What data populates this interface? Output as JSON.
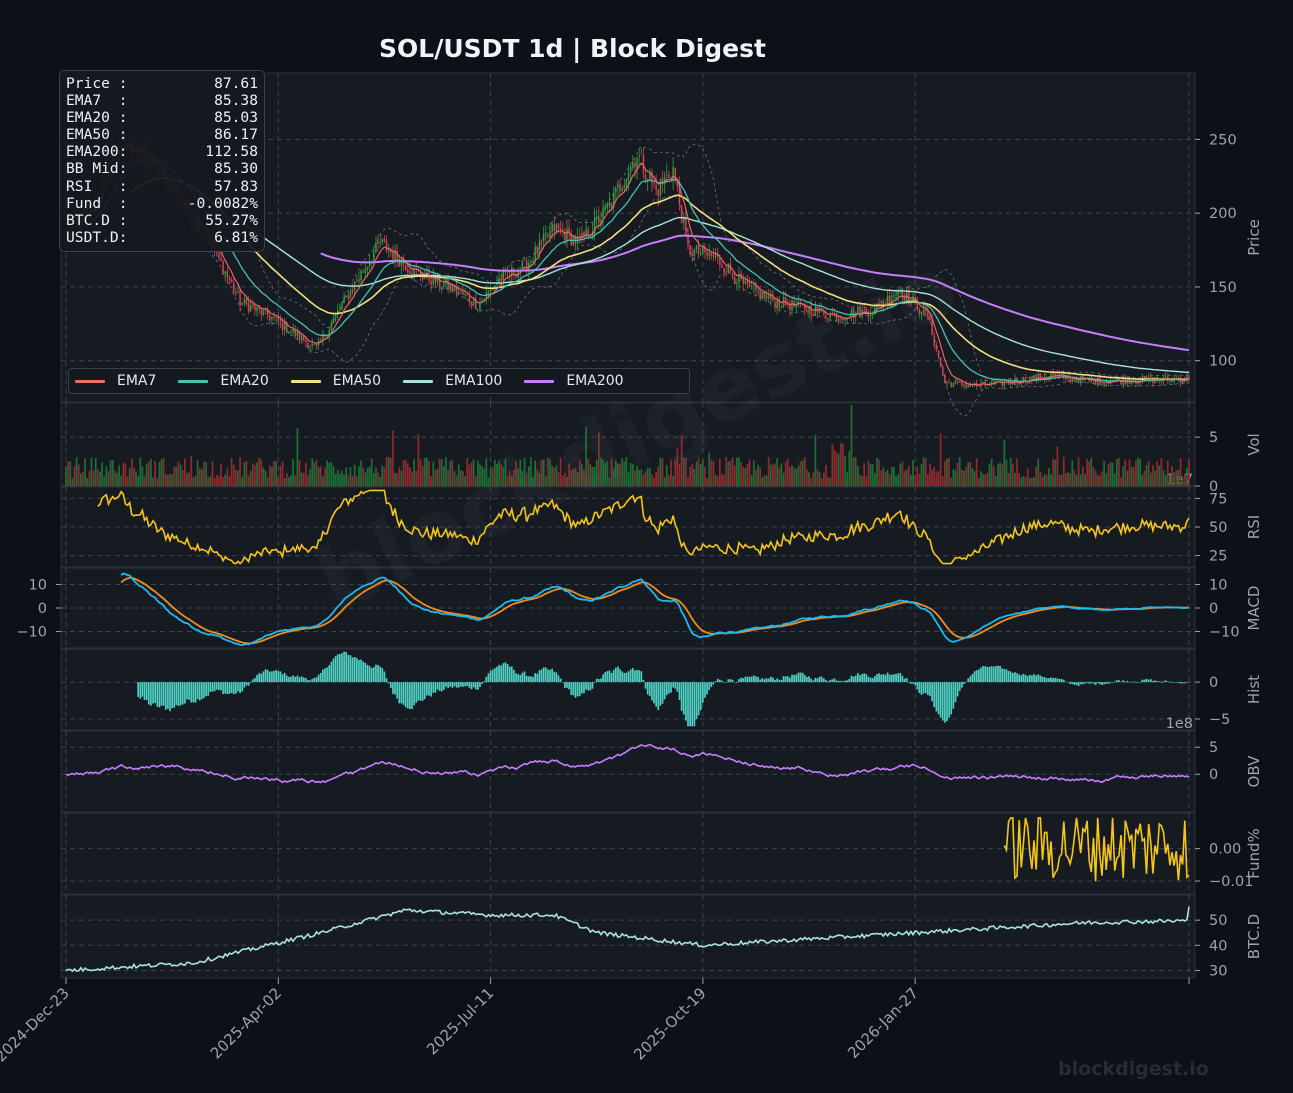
{
  "title": "SOL/USDT  1d  |  Block Digest",
  "info_box": [
    {
      "label": "Price :",
      "value": "87.61"
    },
    {
      "label": "EMA7  :",
      "value": "85.38"
    },
    {
      "label": "EMA20 :",
      "value": "85.03"
    },
    {
      "label": "EMA50 :",
      "value": "86.17"
    },
    {
      "label": "EMA200:",
      "value": "112.58"
    },
    {
      "label": "BB Mid:",
      "value": "85.30"
    },
    {
      "label": "RSI   :",
      "value": "57.83"
    },
    {
      "label": "Fund  :",
      "value": "-0.0082%"
    },
    {
      "label": "BTC.D :",
      "value": "55.27%"
    },
    {
      "label": "USDT.D:",
      "value": "6.81%"
    }
  ],
  "legend": [
    {
      "label": "EMA7",
      "color": "#f06a6a"
    },
    {
      "label": "EMA20",
      "color": "#45c1b4"
    },
    {
      "label": "EMA50",
      "color": "#f3df7c"
    },
    {
      "label": "EMA100",
      "color": "#a9e3d9"
    },
    {
      "label": "EMA200",
      "color": "#c77dff"
    }
  ],
  "watermark": "blockdigest.io",
  "watermark_diagonal": "blockdigest.io",
  "colors": {
    "background": "#0d1017",
    "panel": "#161b22",
    "grid": "#3b4250",
    "up": "#2ea043",
    "down": "#d9434e",
    "rsi": "#f5c518",
    "macd": "#1fb8f0",
    "signal": "#f08c1c",
    "hist": "#4fd1c5",
    "obv": "#c77dff",
    "funding": "#f5c518",
    "btcd": "#a9e3d9"
  },
  "chart_data": {
    "type": "line",
    "x_ticks": [
      "2024-Dec-23",
      "2025-Apr-02",
      "2025-Jul-11",
      "2025-Oct-19",
      "2026-Jan-27"
    ],
    "panels": [
      {
        "id": "price",
        "ylabel": "Price",
        "yticks": [
          100,
          150,
          200,
          250
        ],
        "ylim": [
          72,
          295
        ],
        "type": "candlestick",
        "anchors": {
          "dates": [
            "2024-12-23",
            "2025-01-05",
            "2025-01-18",
            "2025-02-01",
            "2025-02-15",
            "2025-03-01",
            "2025-03-15",
            "2025-03-29",
            "2025-04-08",
            "2025-04-20",
            "2025-05-05",
            "2025-05-20",
            "2025-06-05",
            "2025-06-22",
            "2025-07-05",
            "2025-07-15",
            "2025-07-28",
            "2025-08-10",
            "2025-08-22",
            "2025-09-05",
            "2025-09-18",
            "2025-09-27",
            "2025-10-05",
            "2025-10-12",
            "2025-10-25",
            "2025-11-08",
            "2025-11-22",
            "2025-12-08",
            "2025-12-22",
            "2026-01-08",
            "2026-01-20",
            "2026-02-02",
            "2026-02-10",
            "2026-02-25",
            "2026-03-15",
            "2026-04-01",
            "2026-04-20",
            "2026-05-15",
            "2026-06-05"
          ],
          "close": [
            185,
            205,
            250,
            235,
            210,
            180,
            140,
            130,
            120,
            108,
            145,
            180,
            160,
            150,
            138,
            155,
            165,
            190,
            180,
            205,
            240,
            215,
            230,
            175,
            170,
            150,
            140,
            135,
            130,
            135,
            148,
            130,
            85,
            83,
            86,
            90,
            86,
            87,
            87.61
          ]
        },
        "ema200_label_last": 112.58
      },
      {
        "id": "volume",
        "ylabel": "Vol",
        "yticks": [
          0,
          5
        ],
        "scale_label": "1e7",
        "ylim": [
          0,
          8.5
        ]
      },
      {
        "id": "rsi",
        "ylabel": "RSI",
        "yticks": [
          25,
          50,
          75
        ],
        "ylim": [
          15,
          85
        ],
        "last": 57.83
      },
      {
        "id": "macd",
        "ylabel": "MACD",
        "yticks": [
          -10,
          0,
          10
        ],
        "ylim": [
          -17,
          17
        ]
      },
      {
        "id": "hist",
        "ylabel": "Hist",
        "yticks": [
          -5,
          0
        ],
        "scale_label": "1e8",
        "ylim": [
          -6.5,
          4.5
        ]
      },
      {
        "id": "obv",
        "ylabel": "OBV",
        "yticks": [
          0,
          5
        ],
        "ylim": [
          -7,
          8
        ]
      },
      {
        "id": "funding",
        "ylabel": "Fund%",
        "yticks": [
          -0.01,
          0.0
        ],
        "ylim": [
          -0.014,
          0.011
        ],
        "last": -0.0082
      },
      {
        "id": "btcd",
        "ylabel": "BTC.D",
        "yticks": [
          30,
          40,
          50
        ],
        "ylim": [
          27,
          60
        ],
        "last": 55.27
      }
    ]
  }
}
